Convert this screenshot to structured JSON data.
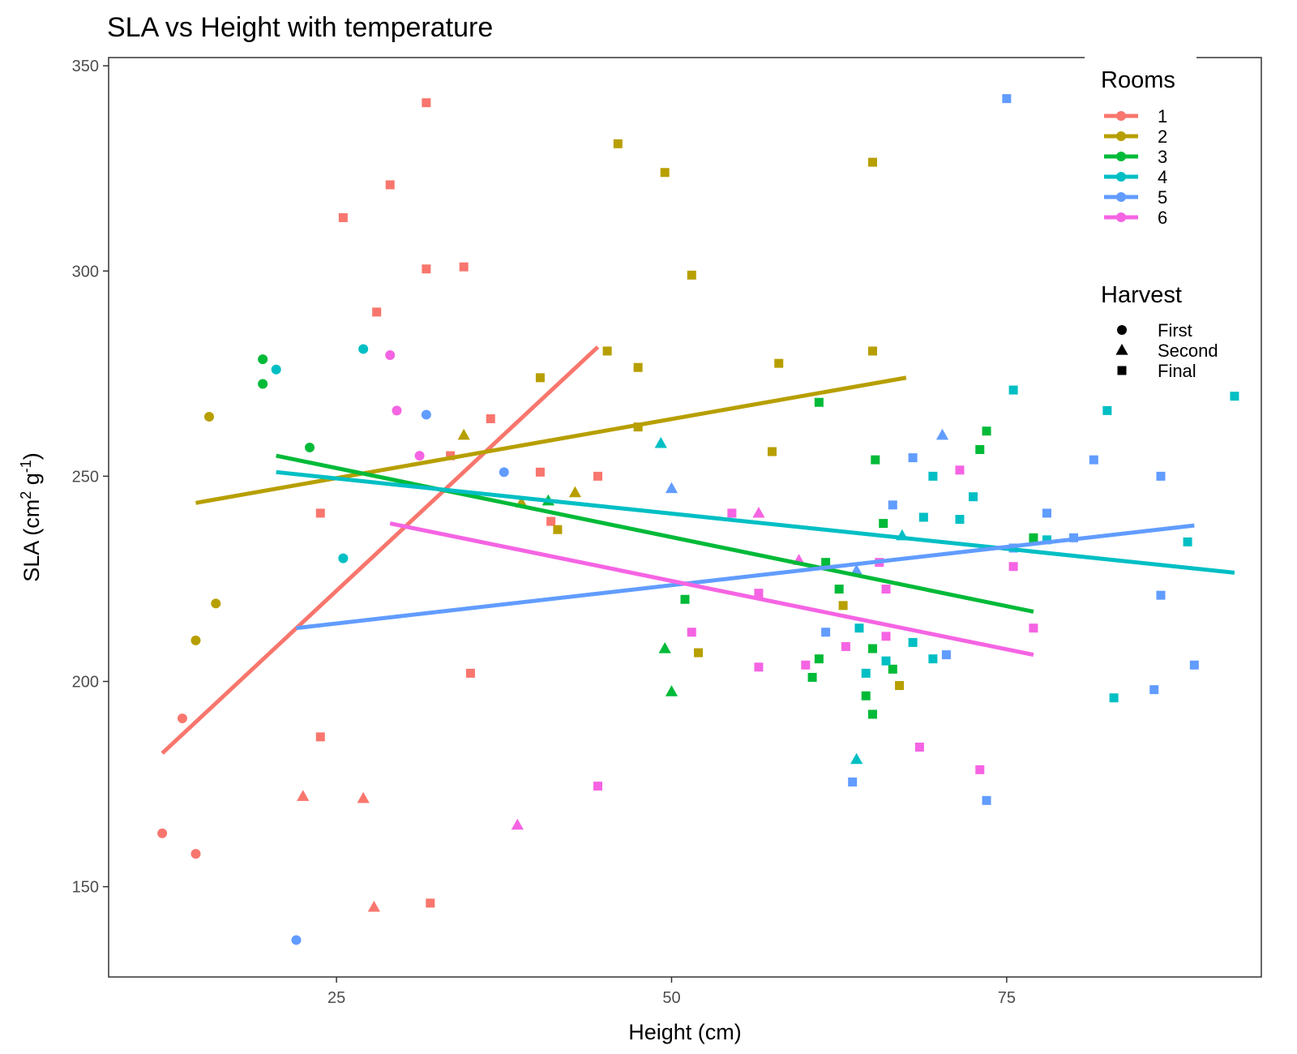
{
  "chart_data": {
    "type": "scatter",
    "title": "SLA vs Height with temperature",
    "xlabel": "Height (cm)",
    "ylabel": {
      "base": "SLA (cm",
      "sup1": "2",
      "mid": " g",
      "sup2": "-1",
      "end": ")"
    },
    "xlim": [
      8,
      94
    ],
    "ylim": [
      128,
      352
    ],
    "xticks": [
      25,
      50,
      75
    ],
    "yticks": [
      150,
      200,
      250,
      300,
      350
    ],
    "grid": false,
    "legend": {
      "placement": "top-right",
      "rooms": {
        "title": "Rooms",
        "entries": [
          {
            "label": "1",
            "color": "#F8766D"
          },
          {
            "label": "2",
            "color": "#B79F00"
          },
          {
            "label": "3",
            "color": "#00BA38"
          },
          {
            "label": "4",
            "color": "#00BFC4"
          },
          {
            "label": "5",
            "color": "#619CFF"
          },
          {
            "label": "6",
            "color": "#F564E3"
          }
        ]
      },
      "harvest": {
        "title": "Harvest",
        "entries": [
          {
            "label": "First",
            "shape": "circle"
          },
          {
            "label": "Second",
            "shape": "triangle"
          },
          {
            "label": "Final",
            "shape": "square"
          }
        ]
      }
    },
    "series": [
      {
        "room": "1",
        "fit": [
          [
            12.0,
            182.5
          ],
          [
            44.5,
            281.5
          ]
        ],
        "points": [
          [
            12,
            163,
            "First"
          ],
          [
            13.5,
            191,
            "First"
          ],
          [
            14.5,
            158,
            "First"
          ],
          [
            22.5,
            172,
            "Second"
          ],
          [
            27,
            171.5,
            "Second"
          ],
          [
            27.8,
            145,
            "Second"
          ],
          [
            23.8,
            186.5,
            "Final"
          ],
          [
            23.8,
            241,
            "Final"
          ],
          [
            25.5,
            313,
            "Final"
          ],
          [
            28,
            290,
            "Final"
          ],
          [
            29,
            321,
            "Final"
          ],
          [
            31.7,
            341,
            "Final"
          ],
          [
            31.7,
            300.5,
            "Final"
          ],
          [
            32,
            146,
            "Final"
          ],
          [
            33.5,
            255,
            "Final"
          ],
          [
            34.5,
            301,
            "Final"
          ],
          [
            35,
            202,
            "Final"
          ],
          [
            36.5,
            264,
            "Final"
          ],
          [
            40.2,
            251,
            "Final"
          ],
          [
            41,
            239,
            "Final"
          ],
          [
            44.5,
            250,
            "Final"
          ]
        ]
      },
      {
        "room": "2",
        "fit": [
          [
            14.5,
            243.5
          ],
          [
            67.5,
            274.0
          ]
        ],
        "points": [
          [
            14.5,
            210,
            "First"
          ],
          [
            15.5,
            264.5,
            "First"
          ],
          [
            16,
            219,
            "First"
          ],
          [
            34.5,
            260,
            "Second"
          ],
          [
            38.8,
            243.5,
            "Second"
          ],
          [
            42.8,
            246,
            "Second"
          ],
          [
            40.2,
            274,
            "Final"
          ],
          [
            41.5,
            237,
            "Final"
          ],
          [
            45.2,
            280.5,
            "Final"
          ],
          [
            46,
            331,
            "Final"
          ],
          [
            47.5,
            262,
            "Final"
          ],
          [
            47.5,
            276.5,
            "Final"
          ],
          [
            49.5,
            324,
            "Final"
          ],
          [
            51.5,
            299,
            "Final"
          ],
          [
            52,
            207,
            "Final"
          ],
          [
            57.5,
            256,
            "Final"
          ],
          [
            58,
            277.5,
            "Final"
          ],
          [
            62.8,
            218.5,
            "Final"
          ],
          [
            65,
            280.5,
            "Final"
          ],
          [
            65,
            326.5,
            "Final"
          ],
          [
            67,
            199,
            "Final"
          ]
        ]
      },
      {
        "room": "3",
        "fit": [
          [
            20.5,
            255.0
          ],
          [
            77.0,
            217.0
          ]
        ],
        "points": [
          [
            19.5,
            278.5,
            "First"
          ],
          [
            19.5,
            272.5,
            "First"
          ],
          [
            23,
            257,
            "First"
          ],
          [
            40.8,
            244,
            "Second"
          ],
          [
            49.5,
            208,
            "Second"
          ],
          [
            50,
            197.5,
            "Second"
          ],
          [
            51,
            220,
            "Final"
          ],
          [
            60.5,
            201,
            "Final"
          ],
          [
            61,
            205.5,
            "Final"
          ],
          [
            61.5,
            229,
            "Final"
          ],
          [
            62.5,
            222.5,
            "Final"
          ],
          [
            61,
            268,
            "Final"
          ],
          [
            64.5,
            196.5,
            "Final"
          ],
          [
            65,
            192,
            "Final"
          ],
          [
            65,
            208,
            "Final"
          ],
          [
            65.2,
            254,
            "Final"
          ],
          [
            65.8,
            238.5,
            "Final"
          ],
          [
            66.5,
            203,
            "Final"
          ],
          [
            73,
            256.5,
            "Final"
          ],
          [
            73.5,
            261,
            "Final"
          ],
          [
            77,
            235,
            "Final"
          ]
        ]
      },
      {
        "room": "4",
        "fit": [
          [
            20.5,
            251.0
          ],
          [
            92.0,
            226.5
          ]
        ],
        "points": [
          [
            20.5,
            276,
            "First"
          ],
          [
            25.5,
            230,
            "First"
          ],
          [
            27,
            281,
            "First"
          ],
          [
            49.2,
            258,
            "Second"
          ],
          [
            63.8,
            181,
            "Second"
          ],
          [
            67.2,
            235.5,
            "Second"
          ],
          [
            64,
            213,
            "Final"
          ],
          [
            64.5,
            202,
            "Final"
          ],
          [
            66,
            205,
            "Final"
          ],
          [
            68,
            209.5,
            "Final"
          ],
          [
            68.8,
            240,
            "Final"
          ],
          [
            69.5,
            250,
            "Final"
          ],
          [
            69.5,
            205.5,
            "Final"
          ],
          [
            71.5,
            239.5,
            "Final"
          ],
          [
            72.5,
            245,
            "Final"
          ],
          [
            75.5,
            271,
            "Final"
          ],
          [
            78,
            234.5,
            "Final"
          ],
          [
            82.5,
            266,
            "Final"
          ],
          [
            83,
            196,
            "Final"
          ],
          [
            88.5,
            234,
            "Final"
          ],
          [
            92,
            269.5,
            "Final"
          ]
        ]
      },
      {
        "room": "5",
        "fit": [
          [
            22.0,
            213.0
          ],
          [
            89.0,
            238.0
          ]
        ],
        "points": [
          [
            22,
            137,
            "First"
          ],
          [
            31.7,
            265,
            "First"
          ],
          [
            37.5,
            251,
            "First"
          ],
          [
            50,
            247,
            "Second"
          ],
          [
            63.8,
            227,
            "Second"
          ],
          [
            70.2,
            260,
            "Second"
          ],
          [
            61.5,
            212,
            "Final"
          ],
          [
            63.5,
            175.5,
            "Final"
          ],
          [
            66.5,
            243,
            "Final"
          ],
          [
            68,
            254.5,
            "Final"
          ],
          [
            70.5,
            206.5,
            "Final"
          ],
          [
            73.5,
            171,
            "Final"
          ],
          [
            75,
            342,
            "Final"
          ],
          [
            75.5,
            232.5,
            "Final"
          ],
          [
            78,
            241,
            "Final"
          ],
          [
            80,
            235,
            "Final"
          ],
          [
            81.5,
            254,
            "Final"
          ],
          [
            86,
            198,
            "Final"
          ],
          [
            86.5,
            250,
            "Final"
          ],
          [
            86.5,
            221,
            "Final"
          ],
          [
            89,
            204,
            "Final"
          ]
        ]
      },
      {
        "room": "6",
        "fit": [
          [
            29.0,
            238.5
          ],
          [
            77.0,
            206.5
          ]
        ],
        "points": [
          [
            29,
            279.5,
            "First"
          ],
          [
            29.5,
            266,
            "First"
          ],
          [
            31.2,
            255,
            "First"
          ],
          [
            38.5,
            165,
            "Second"
          ],
          [
            56.5,
            241,
            "Second"
          ],
          [
            59.5,
            229.5,
            "Second"
          ],
          [
            44.5,
            174.5,
            "Final"
          ],
          [
            51.5,
            212,
            "Final"
          ],
          [
            54.5,
            241,
            "Final"
          ],
          [
            56.5,
            203.5,
            "Final"
          ],
          [
            56.5,
            221.5,
            "Final"
          ],
          [
            60,
            204,
            "Final"
          ],
          [
            63,
            208.5,
            "Final"
          ],
          [
            65.5,
            229,
            "Final"
          ],
          [
            66,
            222.5,
            "Final"
          ],
          [
            66,
            211,
            "Final"
          ],
          [
            68.5,
            184,
            "Final"
          ],
          [
            71.5,
            251.5,
            "Final"
          ],
          [
            73,
            178.5,
            "Final"
          ],
          [
            75.5,
            228,
            "Final"
          ],
          [
            77,
            213,
            "Final"
          ]
        ]
      }
    ]
  }
}
